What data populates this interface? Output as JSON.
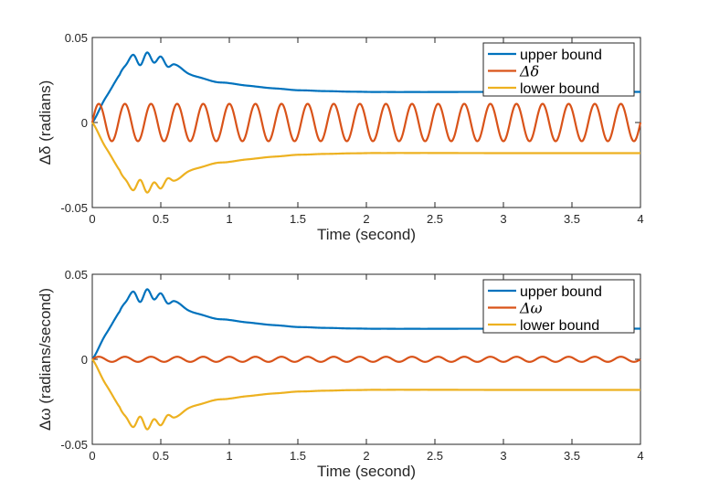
{
  "chart_data": [
    {
      "type": "line",
      "ylabel": "Δδ (radians)",
      "xlabel": "Time (second)",
      "xlim": [
        0,
        4
      ],
      "ylim": [
        -0.05,
        0.05
      ],
      "xticks": [
        "0",
        "0.5",
        "1",
        "1.5",
        "2",
        "2.5",
        "3",
        "3.5",
        "4"
      ],
      "yticks": [
        "0.05",
        "0",
        "-0.05"
      ],
      "legend_position": "top-right",
      "series": [
        {
          "name": "upper bound",
          "color": "#0072BD",
          "steady_state": 0.018,
          "peak": 0.041,
          "x": [
            0,
            0.1,
            0.2,
            0.25,
            0.3,
            0.35,
            0.4,
            0.45,
            0.5,
            0.55,
            0.6,
            0.7,
            0.8,
            0.9,
            1.0,
            1.2,
            1.5,
            2.0,
            3.0,
            4.0
          ],
          "y": [
            0,
            0.015,
            0.028,
            0.034,
            0.04,
            0.034,
            0.041,
            0.035,
            0.039,
            0.033,
            0.034,
            0.029,
            0.026,
            0.024,
            0.023,
            0.021,
            0.019,
            0.018,
            0.018,
            0.018
          ]
        },
        {
          "name": "Δδ",
          "color": "#D95319",
          "amplitude": 0.011,
          "frequency_hz": 5.25
        },
        {
          "name": "lower bound",
          "color": "#EDB120",
          "steady_state": -0.018,
          "peak": -0.041,
          "x": [
            0,
            0.1,
            0.2,
            0.25,
            0.3,
            0.35,
            0.4,
            0.45,
            0.5,
            0.55,
            0.6,
            0.7,
            0.8,
            0.9,
            1.0,
            1.2,
            1.5,
            2.0,
            3.0,
            4.0
          ],
          "y": [
            0,
            -0.015,
            -0.028,
            -0.034,
            -0.04,
            -0.034,
            -0.041,
            -0.035,
            -0.039,
            -0.033,
            -0.034,
            -0.029,
            -0.026,
            -0.024,
            -0.023,
            -0.021,
            -0.019,
            -0.018,
            -0.018,
            -0.018
          ]
        }
      ],
      "legend": [
        {
          "label": "upper bound",
          "math": false
        },
        {
          "label": "Δδ",
          "math": true
        },
        {
          "label": "lower bound",
          "math": false
        }
      ]
    },
    {
      "type": "line",
      "ylabel": "Δω (radians/second)",
      "xlabel": "Time (second)",
      "xlim": [
        0,
        4
      ],
      "ylim": [
        -0.05,
        0.05
      ],
      "xticks": [
        "0",
        "0.5",
        "1",
        "1.5",
        "2",
        "2.5",
        "3",
        "3.5",
        "4"
      ],
      "yticks": [
        "0.05",
        "0",
        "-0.05"
      ],
      "legend_position": "top-right",
      "series": [
        {
          "name": "upper bound",
          "color": "#0072BD",
          "steady_state": 0.018,
          "peak": 0.041,
          "x": [
            0,
            0.1,
            0.2,
            0.25,
            0.3,
            0.35,
            0.4,
            0.45,
            0.5,
            0.55,
            0.6,
            0.7,
            0.8,
            0.9,
            1.0,
            1.2,
            1.5,
            2.0,
            3.0,
            4.0
          ],
          "y": [
            0,
            0.015,
            0.028,
            0.034,
            0.04,
            0.034,
            0.041,
            0.035,
            0.039,
            0.033,
            0.034,
            0.029,
            0.026,
            0.024,
            0.023,
            0.021,
            0.019,
            0.018,
            0.018,
            0.018
          ]
        },
        {
          "name": "Δω",
          "color": "#D95319",
          "amplitude": 0.0015,
          "frequency_hz": 5.25
        },
        {
          "name": "lower bound",
          "color": "#EDB120",
          "steady_state": -0.018,
          "peak": -0.041,
          "x": [
            0,
            0.1,
            0.2,
            0.25,
            0.3,
            0.35,
            0.4,
            0.45,
            0.5,
            0.55,
            0.6,
            0.7,
            0.8,
            0.9,
            1.0,
            1.2,
            1.5,
            2.0,
            3.0,
            4.0
          ],
          "y": [
            0,
            -0.015,
            -0.028,
            -0.034,
            -0.04,
            -0.034,
            -0.041,
            -0.035,
            -0.039,
            -0.033,
            -0.034,
            -0.029,
            -0.026,
            -0.024,
            -0.023,
            -0.021,
            -0.019,
            -0.018,
            -0.018,
            -0.018
          ]
        }
      ],
      "legend": [
        {
          "label": "upper bound",
          "math": false
        },
        {
          "label": "Δω",
          "math": true
        },
        {
          "label": "lower bound",
          "math": false
        }
      ]
    }
  ]
}
